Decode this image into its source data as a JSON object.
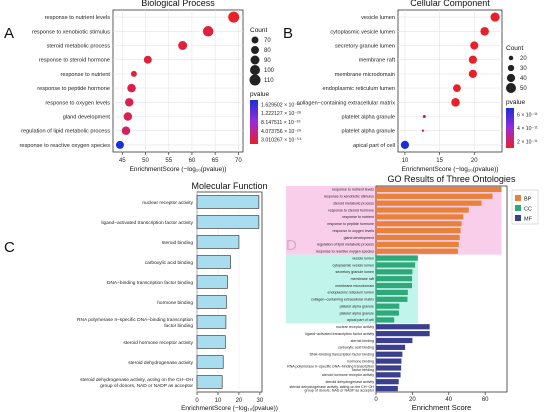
{
  "chart_data": [
    {
      "panel_letter": "A",
      "type": "scatter",
      "title": "Biological Process",
      "xlabel": "EnrichmentScore (−log₁₀(pvalue))",
      "xlim": [
        43,
        71
      ],
      "xticks": [
        45,
        50,
        55,
        60,
        65,
        70
      ],
      "categories": [
        "response to nutrient levels",
        "response to xenobiotic stimulus",
        "steroid metabolic process",
        "response to steroid hormone",
        "response to nutrient",
        "response to peptide hormone",
        "response to oxygen levels",
        "gland development",
        "regulation of lipid metabolic process",
        "response to reactive oxygen species"
      ],
      "x": [
        69,
        63.5,
        58,
        50.5,
        47.5,
        47,
        46.5,
        46.2,
        45.8,
        44.5
      ],
      "count": [
        110,
        105,
        90,
        80,
        60,
        85,
        85,
        85,
        85,
        80
      ],
      "pvalue_rank": [
        0.0,
        0.05,
        0.05,
        0.05,
        0.05,
        0.1,
        0.1,
        0.1,
        0.15,
        1.0
      ],
      "size_legend_title": "Count",
      "size_legend": [
        70,
        80,
        90,
        100,
        110
      ],
      "color_legend_title": "pvalue",
      "color_legend": [
        "1.629502 × 10⁻²⁸",
        "1.222127 × 10⁻²⁸",
        "8.147511 × 10⁻²⁹",
        "4.073756 × 10⁻²⁹",
        "3.010267 × 10⁻⁵⁴"
      ],
      "colors": {
        "low": "#e8202a",
        "mid": "#9a2bd9",
        "high": "#1a2fd6"
      }
    },
    {
      "panel_letter": "B",
      "type": "scatter",
      "title": "Cellular Component",
      "xlabel": "EnrichmentScore (−log₁₀(pvalue))",
      "xlim": [
        9,
        24
      ],
      "xticks": [
        10,
        15,
        20
      ],
      "categories": [
        "vesicle lumen",
        "cytoplasmic vesicle lumen",
        "secretory granule lumen",
        "membrane raft",
        "membrane microdomain",
        "endoplasmic reticulum lumen",
        "collagen−containing extracellular matrix",
        "platelet alpha granule",
        "platelet alpha granule",
        "apical part of cell"
      ],
      "x": [
        23,
        21.5,
        20,
        19.8,
        19.8,
        17.5,
        17.3,
        12.8,
        12.6,
        10
      ],
      "count": [
        45,
        42,
        40,
        40,
        40,
        38,
        42,
        12,
        8,
        40
      ],
      "pvalue_rank": [
        0.0,
        0.0,
        0.0,
        0.0,
        0.0,
        0.0,
        0.0,
        0.05,
        0.05,
        1.0
      ],
      "size_legend_title": "Count",
      "size_legend": [
        20,
        30,
        40,
        50
      ],
      "color_legend_title": "pvalue",
      "color_legend": [
        "6 × 10⁻¹¹",
        "4 × 10⁻¹¹",
        "2 × 10⁻¹¹"
      ],
      "colors": {
        "low": "#e8202a",
        "mid": "#9a2bd9",
        "high": "#1a2fd6"
      }
    },
    {
      "panel_letter": "C",
      "type": "bar",
      "orientation": "horizontal",
      "title": "Molecular Function",
      "xlabel": "EnrichmentScore (−log₁₀(pvalue))",
      "xlim": [
        0,
        31
      ],
      "xticks": [
        0,
        10,
        20,
        30
      ],
      "categories": [
        "nuclear receptor activity",
        "ligand−activated transcription factor activity",
        "steroid binding",
        "carboxylic acid binding",
        "DNA−binding transcription factor binding",
        "hormone binding",
        "RNA polymerase II−specific DNA−binding transcription factor binding",
        "steroid hormone receptor activity",
        "steroid dehydrogenase activity",
        "steroid dehydrogenase activity, acting on the CH−OH group of donors, NAD or NADP as acceptor"
      ],
      "values": [
        29.5,
        29.5,
        20,
        16,
        14.5,
        14,
        13.8,
        13.5,
        12.5,
        12
      ],
      "colors": {
        "bar": "#a8dcef",
        "edge": "#222222"
      }
    },
    {
      "panel_letter": "D",
      "type": "bar",
      "orientation": "horizontal",
      "title": "GO Results of Three Ontologies",
      "xlabel": "Enrichment Score",
      "xlim": [
        0,
        72
      ],
      "xticks": [
        0,
        20,
        40,
        60
      ],
      "categories": [
        "response to nutrient levels",
        "response to xenobiotic stimulus",
        "steroid metabolic process",
        "response to steroid hormone",
        "response to nutrient",
        "response to peptide hormone",
        "response to oxygen levels",
        "gland development",
        "regulation of lipid metabolic process",
        "response to reactive oxygen species",
        "vesicle lumen",
        "cytoplasmic vesicle lumen",
        "secretory granule lumen",
        "membrane raft",
        "membrane microdomain",
        "endoplasmic reticulum lumen",
        "collagen−containing extracellular matrix",
        "platelet alpha granule",
        "platelet alpha granule",
        "apical part of cell",
        "nuclear receptor activity",
        "ligand−activated transcription factor activity",
        "steroid binding",
        "carboxylic acid binding",
        "DNA−binding transcription factor binding",
        "hormone binding",
        "RNA polymerase II−specific DNA−binding transcription factor binding",
        "steroid hormone receptor activity",
        "steroid dehydrogenase activity",
        "steroid dehydrogenase activity, acting on the CH−OH group of donors, NAD or NADP as acceptor"
      ],
      "values": [
        69,
        64,
        58,
        51,
        48,
        47,
        46.5,
        46,
        45.5,
        45,
        23,
        21.5,
        20,
        19.8,
        19.8,
        17.5,
        17.3,
        12.8,
        12.6,
        10,
        29.5,
        29.5,
        20,
        16,
        14.5,
        14,
        13.8,
        13.5,
        12.5,
        12
      ],
      "groups": [
        "BP",
        "BP",
        "BP",
        "BP",
        "BP",
        "BP",
        "BP",
        "BP",
        "BP",
        "BP",
        "CC",
        "CC",
        "CC",
        "CC",
        "CC",
        "CC",
        "CC",
        "CC",
        "CC",
        "CC",
        "MF",
        "MF",
        "MF",
        "MF",
        "MF",
        "MF",
        "MF",
        "MF",
        "MF",
        "MF"
      ],
      "legend": [
        {
          "name": "BP",
          "color": "#e8823a"
        },
        {
          "name": "CC",
          "color": "#2fa87a"
        },
        {
          "name": "MF",
          "color": "#3b3f8f"
        }
      ],
      "highlight_colors": {
        "BP": "#f7c6e8",
        "CC": "#b6f2e6",
        "MF": "#ffffff"
      }
    }
  ]
}
